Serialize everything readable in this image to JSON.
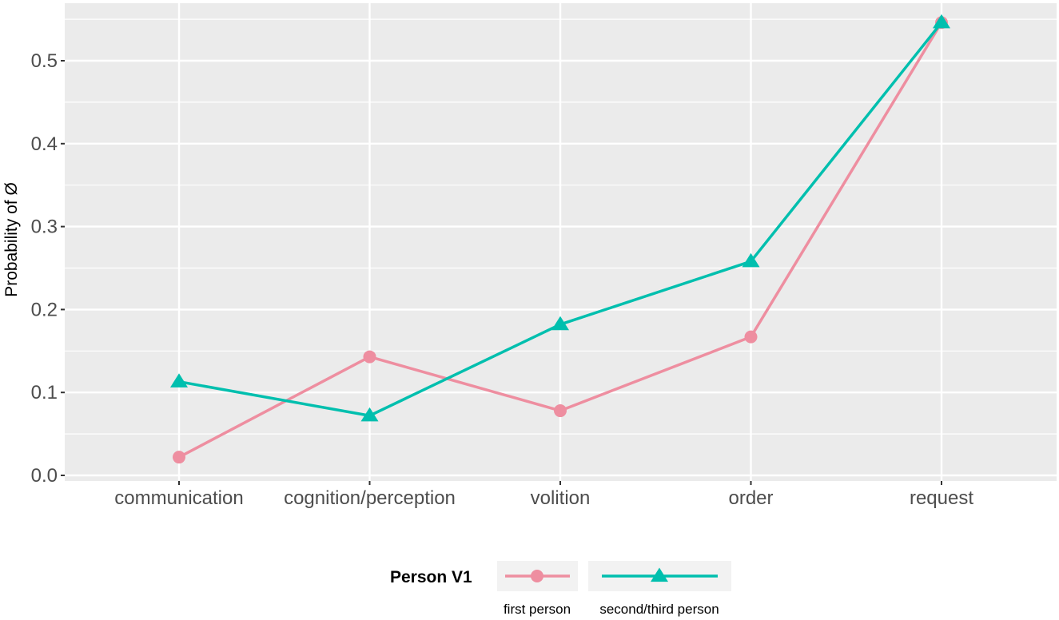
{
  "chart_data": {
    "type": "line",
    "title": "",
    "xlabel": "",
    "ylabel": "Probability of Ø",
    "categories": [
      "communication",
      "cognition/perception",
      "volition",
      "order",
      "request"
    ],
    "series": [
      {
        "name": "first person",
        "color": "#EE8EA0",
        "marker": "circle",
        "values": [
          0.022,
          0.143,
          0.078,
          0.167,
          0.546
        ]
      },
      {
        "name": "second/third person",
        "color": "#00BFAE",
        "marker": "triangle",
        "values": [
          0.113,
          0.072,
          0.182,
          0.258,
          0.546
        ]
      }
    ],
    "ylim": [
      -0.005,
      0.57
    ],
    "yticks": [
      0.0,
      0.1,
      0.2,
      0.3,
      0.4,
      0.5
    ],
    "ytick_labels": [
      "0.0",
      "0.1",
      "0.2",
      "0.3",
      "0.4",
      "0.5"
    ],
    "grid": true,
    "legend": {
      "title": "Person V1",
      "position": "bottom",
      "entries": [
        "first person",
        "second/third person"
      ]
    }
  },
  "colors": {
    "panel_bg": "#EBEBEB",
    "grid": "#FFFFFF",
    "first_person": "#EE8EA0",
    "second_third_person": "#00BFAE",
    "legend_key_bg": "#F2F2F2"
  }
}
